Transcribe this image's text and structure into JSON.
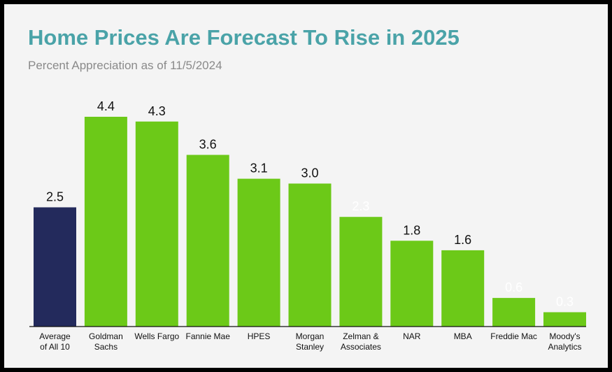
{
  "title": "Home Prices Are Forecast To Rise in 2025",
  "subtitle": "Percent Appreciation as of 11/5/2024",
  "colors": {
    "average_bar": "#232a5c",
    "forecast_bar": "#6cc918",
    "title": "#4aa3a8",
    "label_dark": "#111111",
    "label_light": "#ffffff"
  },
  "chart_data": {
    "type": "bar",
    "title": "Home Prices Are Forecast To Rise in 2025",
    "subtitle": "Percent Appreciation as of 11/5/2024",
    "xlabel": "",
    "ylabel": "",
    "ylim": [
      0,
      4.4
    ],
    "grid": false,
    "categories": [
      [
        "Average",
        "of All 10"
      ],
      [
        "Goldman",
        "Sachs"
      ],
      [
        "Wells Fargo"
      ],
      [
        "Fannie Mae"
      ],
      [
        "HPES"
      ],
      [
        "Morgan",
        "Stanley"
      ],
      [
        "Zelman &",
        "Associates"
      ],
      [
        "NAR"
      ],
      [
        "MBA"
      ],
      [
        "Freddie Mac"
      ],
      [
        "Moody's",
        "Analytics"
      ]
    ],
    "values": [
      2.5,
      4.4,
      4.3,
      3.6,
      3.1,
      3.0,
      2.3,
      1.8,
      1.6,
      0.6,
      0.3
    ],
    "value_labels": [
      "2.5",
      "4.4",
      "4.3",
      "3.6",
      "3.1",
      "3.0",
      "2.3",
      "1.8",
      "1.6",
      "0.6",
      "0.3"
    ],
    "label_color_light": [
      false,
      false,
      false,
      false,
      false,
      false,
      true,
      false,
      false,
      true,
      true
    ],
    "highlight_index": 0
  }
}
